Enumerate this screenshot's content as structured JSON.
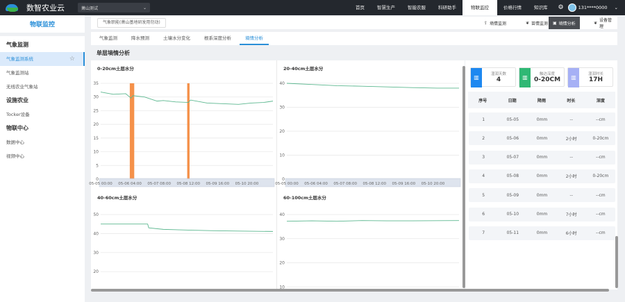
{
  "app": {
    "title": "数智农业云",
    "site_select": "萧山测试",
    "user": "131****0000"
  },
  "nav": [
    "首页",
    "智慧生产",
    "智能农服",
    "科研助手",
    "物联监控",
    "价格行情",
    "知识库"
  ],
  "nav_active": "物联监控",
  "sidebar": {
    "title": "物联监控",
    "groups": [
      {
        "label": "气象监测",
        "items": [
          "气象监测系统",
          "气象监测站",
          "无线农业气象站"
        ]
      },
      {
        "label": "设施农业",
        "items": [
          "Tocker设备"
        ]
      },
      {
        "label": "物联中心",
        "items": [
          "数据中心",
          "视频中心"
        ]
      }
    ],
    "active_item": "气象监测系统"
  },
  "station_select": "气象职能(萧山基地研发用勿动)",
  "header_buttons": [
    {
      "label": "墒情监测",
      "icon": "upload-icon"
    },
    {
      "label": "苗情监测",
      "icon": "leaf-icon"
    },
    {
      "label": "墒情分析",
      "icon": "analysis-icon",
      "active": true
    },
    {
      "label": "设备管理",
      "icon": "leaf-icon"
    }
  ],
  "tabs": [
    "气象监测",
    "降水预测",
    "土壤水分变化",
    "根系深度分析",
    "墒情分析"
  ],
  "active_tab": "墒情分析",
  "section_title": "单层墒情分析",
  "colors": {
    "line": "#5bb78f",
    "bar": "#f5914a",
    "accent": "#2a8fd8"
  },
  "summary": [
    {
      "label": "湿润天数",
      "value": "4",
      "color": "#1e88f0"
    },
    {
      "label": "触达深度",
      "value": "0-20CM",
      "color": "#2fb874"
    },
    {
      "label": "湿润时长",
      "value": "17H",
      "color": "#a6b0f5"
    }
  ],
  "table": {
    "headers": [
      "序号",
      "日期",
      "降雨",
      "时长",
      "深度"
    ],
    "rows": [
      [
        "1",
        "05-05",
        "0mm",
        "--",
        "--cm"
      ],
      [
        "2",
        "05-06",
        "0mm",
        "2小时",
        "0-20cm"
      ],
      [
        "3",
        "05-07",
        "0mm",
        "--",
        "--cm"
      ],
      [
        "4",
        "05-08",
        "0mm",
        "2小时",
        "0-20cm"
      ],
      [
        "5",
        "05-09",
        "0mm",
        "--",
        "--cm"
      ],
      [
        "6",
        "05-10",
        "0mm",
        "7小时",
        "--cm"
      ],
      [
        "7",
        "05-11",
        "0mm",
        "6小时",
        "--cm"
      ]
    ]
  },
  "chart_data": [
    {
      "type": "line",
      "title": "0-20cm土层水分",
      "ylim": [
        0,
        35
      ],
      "yticks": [
        0,
        5,
        10,
        15,
        20,
        25,
        30,
        35
      ],
      "xlim": [
        "05-05 00:00",
        "05-11 21:00"
      ],
      "xticks": [
        "05-05 00:00",
        "05-06 04:00",
        "05-07 08:00",
        "05-08 12:00",
        "05-09 16:00",
        "05-10 20:00"
      ],
      "grid": true,
      "zoom_slider": true,
      "x": [
        "05-05 00:00",
        "05-05 12:00",
        "05-06 00:00",
        "05-06 05:00",
        "05-06 07:00",
        "05-06 18:00",
        "05-07 06:00",
        "05-07 12:00",
        "05-08 00:00",
        "05-08 12:00",
        "05-08 14:00",
        "05-09 06:00",
        "05-10 00:00",
        "05-10 12:00",
        "05-11 00:00",
        "05-11 12:00",
        "05-11 21:00"
      ],
      "y": [
        31.8,
        31,
        31.2,
        29.6,
        30.5,
        30,
        28.5,
        28.7,
        28.2,
        28,
        28.9,
        27.8,
        27.5,
        27.3,
        27.8,
        28,
        28.5
      ],
      "bars": [
        "05-06 05:00",
        "05-06 07:00",
        "05-08 12:00"
      ]
    },
    {
      "type": "line",
      "title": "20-40cm土层水分",
      "ylim": [
        0,
        40
      ],
      "yticks": [
        0,
        10,
        20,
        30,
        40
      ],
      "xlim": [
        "05-05 00:00",
        "05-11 21:00"
      ],
      "xticks": [
        "05-05 00:00",
        "05-06 04:00",
        "05-07 08:00",
        "05-08 12:00",
        "05-09 16:00",
        "05-10 20:00"
      ],
      "grid": true,
      "zoom_slider": true,
      "x": [
        "05-05 00:00",
        "05-06 00:00",
        "05-07 00:00",
        "05-08 00:00",
        "05-09 00:00",
        "05-10 00:00",
        "05-11 00:00",
        "05-11 21:00"
      ],
      "y": [
        40,
        39.5,
        39,
        38.8,
        38.5,
        38.2,
        38,
        38
      ]
    },
    {
      "type": "line",
      "title": "40-60cm土层水分",
      "ylim": [
        0,
        50
      ],
      "yticks": [
        20,
        30,
        40,
        50
      ],
      "xlim": [
        "05-05 00:00",
        "05-11 21:00"
      ],
      "grid": true,
      "x": [
        "05-05 00:00",
        "05-06 21:00",
        "05-06 22:00",
        "05-07 12:00",
        "05-08 12:00",
        "05-09 12:00",
        "05-10 12:00",
        "05-11 21:00"
      ],
      "y": [
        45,
        45,
        43,
        42.2,
        41.8,
        41.5,
        41.3,
        41.1
      ]
    },
    {
      "type": "line",
      "title": "60-100cm土层水分",
      "ylim": [
        0,
        40
      ],
      "yticks": [
        10,
        20,
        30,
        40
      ],
      "xlim": [
        "05-05 00:00",
        "05-11 21:00"
      ],
      "grid": true,
      "x": [
        "05-05 00:00",
        "05-06 00:00",
        "05-07 00:00",
        "05-08 00:00",
        "05-09 00:00",
        "05-10 00:00",
        "05-11 21:00"
      ],
      "y": [
        37.2,
        37.4,
        37.2,
        37.5,
        37.4,
        37.4,
        37.5
      ]
    }
  ]
}
